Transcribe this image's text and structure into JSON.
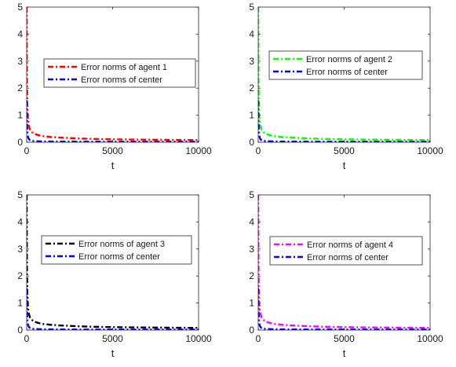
{
  "chart_data": [
    {
      "type": "line",
      "title": "",
      "xlabel": "t",
      "ylabel": "",
      "xlim": [
        0,
        10000
      ],
      "ylim": [
        0,
        5
      ],
      "xticks": [
        "0",
        "5000",
        "10000"
      ],
      "yticks": [
        "0",
        "1",
        "2",
        "3",
        "4",
        "5"
      ],
      "grid": false,
      "legend_position": "center-right",
      "series": [
        {
          "name": "Error norms of agent 1",
          "color": "#ff0000",
          "style": "dash-dot",
          "x": [
            0,
            10,
            20,
            40,
            60,
            80,
            100,
            150,
            200,
            300,
            400,
            500,
            700,
            1000,
            1500,
            2000,
            3000,
            4000,
            5000,
            6000,
            7000,
            8000,
            9000,
            10000
          ],
          "y": [
            5.0,
            3.0,
            2.1,
            1.35,
            1.0,
            0.82,
            0.7,
            0.55,
            0.46,
            0.38,
            0.33,
            0.3,
            0.26,
            0.22,
            0.19,
            0.17,
            0.14,
            0.12,
            0.11,
            0.1,
            0.095,
            0.09,
            0.085,
            0.08
          ]
        },
        {
          "name": "Error norms of center",
          "color": "#0000ff",
          "style": "dash-dot",
          "x": [
            0,
            10,
            20,
            40,
            60,
            80,
            100,
            150,
            200,
            300,
            500,
            1000,
            2000,
            3000,
            5000,
            7000,
            10000
          ],
          "y": [
            1.55,
            1.0,
            0.7,
            0.4,
            0.28,
            0.2,
            0.15,
            0.1,
            0.07,
            0.05,
            0.04,
            0.03,
            0.025,
            0.02,
            0.02,
            0.02,
            0.02
          ]
        }
      ]
    },
    {
      "type": "line",
      "title": "",
      "xlabel": "t",
      "ylabel": "",
      "xlim": [
        0,
        10000
      ],
      "ylim": [
        0,
        5
      ],
      "xticks": [
        "0",
        "5000",
        "10000"
      ],
      "yticks": [
        "0",
        "1",
        "2",
        "3",
        "4",
        "5"
      ],
      "grid": false,
      "legend_position": "top-right",
      "series": [
        {
          "name": "Error norms of agent 2",
          "color": "#00ff00",
          "style": "dash-dot",
          "x": [
            0,
            10,
            20,
            40,
            60,
            80,
            100,
            150,
            200,
            300,
            400,
            500,
            700,
            1000,
            1500,
            2000,
            3000,
            4000,
            5000,
            6000,
            7000,
            8000,
            9000,
            10000
          ],
          "y": [
            5.0,
            3.0,
            2.1,
            1.35,
            1.0,
            0.82,
            0.7,
            0.55,
            0.46,
            0.38,
            0.33,
            0.3,
            0.26,
            0.22,
            0.19,
            0.17,
            0.14,
            0.12,
            0.11,
            0.1,
            0.095,
            0.09,
            0.085,
            0.08
          ]
        },
        {
          "name": "Error norms of center",
          "color": "#0000ff",
          "style": "dash-dot",
          "x": [
            0,
            10,
            20,
            40,
            60,
            80,
            100,
            150,
            200,
            300,
            500,
            1000,
            2000,
            3000,
            5000,
            7000,
            10000
          ],
          "y": [
            1.55,
            1.0,
            0.7,
            0.4,
            0.28,
            0.2,
            0.15,
            0.1,
            0.07,
            0.05,
            0.04,
            0.03,
            0.025,
            0.02,
            0.02,
            0.02,
            0.02
          ]
        }
      ]
    },
    {
      "type": "line",
      "title": "",
      "xlabel": "t",
      "ylabel": "",
      "xlim": [
        0,
        10000
      ],
      "ylim": [
        0,
        5
      ],
      "xticks": [
        "0",
        "5000",
        "10000"
      ],
      "yticks": [
        "0",
        "1",
        "2",
        "3",
        "4",
        "5"
      ],
      "grid": false,
      "legend_position": "center-right",
      "series": [
        {
          "name": "Error norms of agent 3",
          "color": "#000000",
          "style": "dash-dot",
          "x": [
            0,
            10,
            20,
            40,
            60,
            80,
            100,
            150,
            200,
            300,
            400,
            500,
            700,
            1000,
            1500,
            2000,
            3000,
            4000,
            5000,
            6000,
            7000,
            8000,
            9000,
            10000
          ],
          "y": [
            5.0,
            3.0,
            2.1,
            1.35,
            1.0,
            0.82,
            0.7,
            0.55,
            0.46,
            0.38,
            0.33,
            0.3,
            0.26,
            0.22,
            0.19,
            0.17,
            0.14,
            0.12,
            0.11,
            0.1,
            0.095,
            0.09,
            0.085,
            0.08
          ]
        },
        {
          "name": "Error norms of center",
          "color": "#0000ff",
          "style": "dash-dot",
          "x": [
            0,
            10,
            20,
            40,
            60,
            80,
            100,
            150,
            200,
            300,
            500,
            1000,
            2000,
            3000,
            5000,
            7000,
            10000
          ],
          "y": [
            1.55,
            1.0,
            0.7,
            0.4,
            0.28,
            0.2,
            0.15,
            0.1,
            0.07,
            0.05,
            0.04,
            0.03,
            0.025,
            0.02,
            0.02,
            0.02,
            0.02
          ]
        }
      ]
    },
    {
      "type": "line",
      "title": "",
      "xlabel": "t",
      "ylabel": "",
      "xlim": [
        0,
        10000
      ],
      "ylim": [
        0,
        5
      ],
      "xticks": [
        "0",
        "5000",
        "10000"
      ],
      "yticks": [
        "0",
        "1",
        "2",
        "3",
        "4",
        "5"
      ],
      "grid": false,
      "legend_position": "center-right",
      "series": [
        {
          "name": "Error norms of agent 4",
          "color": "#ff00ff",
          "style": "dash-dot",
          "x": [
            0,
            10,
            20,
            40,
            60,
            80,
            100,
            150,
            200,
            300,
            400,
            500,
            700,
            1000,
            1500,
            2000,
            3000,
            4000,
            5000,
            6000,
            7000,
            8000,
            9000,
            10000
          ],
          "y": [
            5.0,
            3.0,
            2.1,
            1.35,
            1.0,
            0.82,
            0.7,
            0.55,
            0.46,
            0.38,
            0.33,
            0.3,
            0.26,
            0.22,
            0.19,
            0.17,
            0.14,
            0.12,
            0.11,
            0.1,
            0.095,
            0.09,
            0.085,
            0.08
          ]
        },
        {
          "name": "Error norms of center",
          "color": "#0000ff",
          "style": "dash-dot",
          "x": [
            0,
            10,
            20,
            40,
            60,
            80,
            100,
            150,
            200,
            300,
            500,
            1000,
            2000,
            3000,
            5000,
            7000,
            10000
          ],
          "y": [
            1.55,
            1.0,
            0.7,
            0.4,
            0.28,
            0.2,
            0.15,
            0.1,
            0.07,
            0.05,
            0.04,
            0.03,
            0.025,
            0.02,
            0.02,
            0.02,
            0.02
          ]
        }
      ]
    }
  ]
}
